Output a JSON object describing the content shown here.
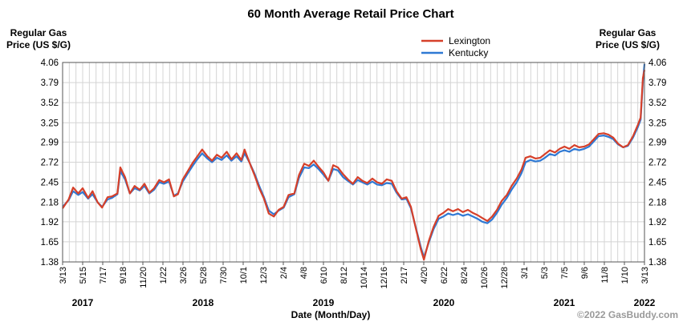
{
  "chart_data": {
    "type": "line",
    "title": "60 Month Average Retail Price Chart",
    "ylabel_left": [
      "Regular Gas",
      "Price (US $/G)"
    ],
    "ylabel_right": [
      "Regular Gas",
      "Price (US $/G)"
    ],
    "xlabel": "Date (Month/Day)",
    "credit": "©2022 GasBuddy.com",
    "yticks": [
      "4.06",
      "3.79",
      "3.52",
      "3.25",
      "2.99",
      "2.72",
      "2.45",
      "2.18",
      "1.92",
      "1.65",
      "1.38"
    ],
    "ylim": [
      1.38,
      4.06
    ],
    "x_tick_labels": [
      "3/13",
      "5/15",
      "7/17",
      "9/18",
      "11/20",
      "1/22",
      "3/26",
      "5/28",
      "7/30",
      "10/1",
      "12/3",
      "2/4",
      "4/8",
      "6/10",
      "8/12",
      "10/14",
      "12/16",
      "2/17",
      "4/20",
      "6/22",
      "8/24",
      "10/26",
      "12/28",
      "3/1",
      "5/3",
      "7/5",
      "9/6",
      "11/8",
      "1/10",
      "3/13"
    ],
    "years": [
      {
        "label": "2017",
        "at": "5/15"
      },
      {
        "label": "2018",
        "at": "5/28"
      },
      {
        "label": "2019",
        "at": "6/10"
      },
      {
        "label": "2020",
        "at": "6/22"
      },
      {
        "label": "2021",
        "at": "7/5"
      },
      {
        "label": "2022",
        "at": "3/13"
      }
    ],
    "x_range": [
      "2017-03-13",
      "2022-03-13"
    ],
    "grid": true,
    "legend_position": "top",
    "series": [
      {
        "name": "Lexington",
        "color": "#d6402a",
        "points": [
          [
            "2017-03-13",
            2.1
          ],
          [
            "2017-04-01",
            2.22
          ],
          [
            "2017-04-15",
            2.38
          ],
          [
            "2017-05-01",
            2.3
          ],
          [
            "2017-05-15",
            2.37
          ],
          [
            "2017-06-01",
            2.24
          ],
          [
            "2017-06-15",
            2.33
          ],
          [
            "2017-07-01",
            2.18
          ],
          [
            "2017-07-15",
            2.11
          ],
          [
            "2017-08-01",
            2.25
          ],
          [
            "2017-08-15",
            2.26
          ],
          [
            "2017-09-01",
            2.3
          ],
          [
            "2017-09-10",
            2.65
          ],
          [
            "2017-09-25",
            2.52
          ],
          [
            "2017-10-10",
            2.3
          ],
          [
            "2017-10-25",
            2.4
          ],
          [
            "2017-11-10",
            2.35
          ],
          [
            "2017-11-25",
            2.43
          ],
          [
            "2017-12-10",
            2.31
          ],
          [
            "2017-12-25",
            2.37
          ],
          [
            "2018-01-10",
            2.48
          ],
          [
            "2018-01-25",
            2.45
          ],
          [
            "2018-02-10",
            2.49
          ],
          [
            "2018-02-25",
            2.26
          ],
          [
            "2018-03-10",
            2.29
          ],
          [
            "2018-03-25",
            2.49
          ],
          [
            "2018-04-10",
            2.6
          ],
          [
            "2018-04-25",
            2.71
          ],
          [
            "2018-05-10",
            2.8
          ],
          [
            "2018-05-25",
            2.89
          ],
          [
            "2018-06-10",
            2.8
          ],
          [
            "2018-06-25",
            2.74
          ],
          [
            "2018-07-10",
            2.82
          ],
          [
            "2018-07-25",
            2.78
          ],
          [
            "2018-08-10",
            2.86
          ],
          [
            "2018-08-25",
            2.76
          ],
          [
            "2018-09-10",
            2.84
          ],
          [
            "2018-09-25",
            2.75
          ],
          [
            "2018-10-05",
            2.89
          ],
          [
            "2018-10-20",
            2.72
          ],
          [
            "2018-11-05",
            2.55
          ],
          [
            "2018-11-20",
            2.37
          ],
          [
            "2018-12-05",
            2.23
          ],
          [
            "2018-12-20",
            2.03
          ],
          [
            "2019-01-05",
            1.99
          ],
          [
            "2019-01-20",
            2.08
          ],
          [
            "2019-02-05",
            2.12
          ],
          [
            "2019-02-20",
            2.28
          ],
          [
            "2019-03-10",
            2.3
          ],
          [
            "2019-03-25",
            2.55
          ],
          [
            "2019-04-10",
            2.7
          ],
          [
            "2019-04-25",
            2.67
          ],
          [
            "2019-05-10",
            2.74
          ],
          [
            "2019-05-25",
            2.66
          ],
          [
            "2019-06-10",
            2.58
          ],
          [
            "2019-06-25",
            2.47
          ],
          [
            "2019-07-10",
            2.68
          ],
          [
            "2019-07-25",
            2.65
          ],
          [
            "2019-08-10",
            2.56
          ],
          [
            "2019-08-25",
            2.49
          ],
          [
            "2019-09-10",
            2.43
          ],
          [
            "2019-09-25",
            2.52
          ],
          [
            "2019-10-10",
            2.47
          ],
          [
            "2019-10-25",
            2.44
          ],
          [
            "2019-11-10",
            2.5
          ],
          [
            "2019-11-25",
            2.45
          ],
          [
            "2019-12-10",
            2.43
          ],
          [
            "2019-12-25",
            2.49
          ],
          [
            "2020-01-10",
            2.47
          ],
          [
            "2020-01-25",
            2.33
          ],
          [
            "2020-02-10",
            2.23
          ],
          [
            "2020-02-25",
            2.25
          ],
          [
            "2020-03-10",
            2.12
          ],
          [
            "2020-03-25",
            1.84
          ],
          [
            "2020-04-10",
            1.55
          ],
          [
            "2020-04-20",
            1.41
          ],
          [
            "2020-05-05",
            1.66
          ],
          [
            "2020-05-20",
            1.85
          ],
          [
            "2020-06-05",
            2.0
          ],
          [
            "2020-06-20",
            2.04
          ],
          [
            "2020-07-05",
            2.09
          ],
          [
            "2020-07-20",
            2.06
          ],
          [
            "2020-08-05",
            2.09
          ],
          [
            "2020-08-20",
            2.05
          ],
          [
            "2020-09-05",
            2.08
          ],
          [
            "2020-09-20",
            2.04
          ],
          [
            "2020-10-05",
            2.01
          ],
          [
            "2020-10-20",
            1.97
          ],
          [
            "2020-11-05",
            1.93
          ],
          [
            "2020-11-20",
            1.99
          ],
          [
            "2020-12-05",
            2.08
          ],
          [
            "2020-12-20",
            2.2
          ],
          [
            "2021-01-05",
            2.28
          ],
          [
            "2021-01-20",
            2.4
          ],
          [
            "2021-02-05",
            2.5
          ],
          [
            "2021-02-20",
            2.62
          ],
          [
            "2021-03-05",
            2.78
          ],
          [
            "2021-03-20",
            2.8
          ],
          [
            "2021-04-05",
            2.77
          ],
          [
            "2021-04-20",
            2.78
          ],
          [
            "2021-05-05",
            2.83
          ],
          [
            "2021-05-20",
            2.88
          ],
          [
            "2021-06-05",
            2.85
          ],
          [
            "2021-06-20",
            2.9
          ],
          [
            "2021-07-05",
            2.93
          ],
          [
            "2021-07-20",
            2.9
          ],
          [
            "2021-08-05",
            2.95
          ],
          [
            "2021-08-20",
            2.92
          ],
          [
            "2021-09-05",
            2.93
          ],
          [
            "2021-09-20",
            2.96
          ],
          [
            "2021-10-05",
            3.03
          ],
          [
            "2021-10-20",
            3.1
          ],
          [
            "2021-11-05",
            3.11
          ],
          [
            "2021-11-20",
            3.09
          ],
          [
            "2021-12-05",
            3.05
          ],
          [
            "2021-12-20",
            2.97
          ],
          [
            "2022-01-05",
            2.92
          ],
          [
            "2022-01-20",
            2.95
          ],
          [
            "2022-02-05",
            3.07
          ],
          [
            "2022-02-20",
            3.22
          ],
          [
            "2022-03-01",
            3.32
          ],
          [
            "2022-03-08",
            3.85
          ],
          [
            "2022-03-13",
            3.96
          ]
        ]
      },
      {
        "name": "Kentucky",
        "color": "#2f79d4",
        "points": [
          [
            "2017-03-13",
            2.12
          ],
          [
            "2017-04-01",
            2.21
          ],
          [
            "2017-04-15",
            2.33
          ],
          [
            "2017-05-01",
            2.28
          ],
          [
            "2017-05-15",
            2.32
          ],
          [
            "2017-06-01",
            2.23
          ],
          [
            "2017-06-15",
            2.29
          ],
          [
            "2017-07-01",
            2.18
          ],
          [
            "2017-07-15",
            2.12
          ],
          [
            "2017-08-01",
            2.22
          ],
          [
            "2017-08-15",
            2.24
          ],
          [
            "2017-09-01",
            2.29
          ],
          [
            "2017-09-10",
            2.6
          ],
          [
            "2017-09-25",
            2.49
          ],
          [
            "2017-10-10",
            2.3
          ],
          [
            "2017-10-25",
            2.37
          ],
          [
            "2017-11-10",
            2.34
          ],
          [
            "2017-11-25",
            2.4
          ],
          [
            "2017-12-10",
            2.3
          ],
          [
            "2017-12-25",
            2.35
          ],
          [
            "2018-01-10",
            2.45
          ],
          [
            "2018-01-25",
            2.43
          ],
          [
            "2018-02-10",
            2.46
          ],
          [
            "2018-02-25",
            2.27
          ],
          [
            "2018-03-10",
            2.3
          ],
          [
            "2018-03-25",
            2.46
          ],
          [
            "2018-04-10",
            2.57
          ],
          [
            "2018-04-25",
            2.67
          ],
          [
            "2018-05-10",
            2.76
          ],
          [
            "2018-05-25",
            2.84
          ],
          [
            "2018-06-10",
            2.77
          ],
          [
            "2018-06-25",
            2.72
          ],
          [
            "2018-07-10",
            2.78
          ],
          [
            "2018-07-25",
            2.75
          ],
          [
            "2018-08-10",
            2.81
          ],
          [
            "2018-08-25",
            2.74
          ],
          [
            "2018-09-10",
            2.8
          ],
          [
            "2018-09-25",
            2.73
          ],
          [
            "2018-10-05",
            2.84
          ],
          [
            "2018-10-20",
            2.72
          ],
          [
            "2018-11-05",
            2.57
          ],
          [
            "2018-11-20",
            2.4
          ],
          [
            "2018-12-05",
            2.25
          ],
          [
            "2018-12-20",
            2.07
          ],
          [
            "2019-01-05",
            2.02
          ],
          [
            "2019-01-20",
            2.07
          ],
          [
            "2019-02-05",
            2.11
          ],
          [
            "2019-02-20",
            2.25
          ],
          [
            "2019-03-10",
            2.29
          ],
          [
            "2019-03-25",
            2.51
          ],
          [
            "2019-04-10",
            2.65
          ],
          [
            "2019-04-25",
            2.64
          ],
          [
            "2019-05-10",
            2.69
          ],
          [
            "2019-05-25",
            2.63
          ],
          [
            "2019-06-10",
            2.55
          ],
          [
            "2019-06-25",
            2.47
          ],
          [
            "2019-07-10",
            2.63
          ],
          [
            "2019-07-25",
            2.61
          ],
          [
            "2019-08-10",
            2.52
          ],
          [
            "2019-08-25",
            2.47
          ],
          [
            "2019-09-10",
            2.42
          ],
          [
            "2019-09-25",
            2.48
          ],
          [
            "2019-10-10",
            2.45
          ],
          [
            "2019-10-25",
            2.42
          ],
          [
            "2019-11-10",
            2.46
          ],
          [
            "2019-11-25",
            2.42
          ],
          [
            "2019-12-10",
            2.41
          ],
          [
            "2019-12-25",
            2.44
          ],
          [
            "2020-01-10",
            2.43
          ],
          [
            "2020-01-25",
            2.31
          ],
          [
            "2020-02-10",
            2.22
          ],
          [
            "2020-02-25",
            2.23
          ],
          [
            "2020-03-10",
            2.1
          ],
          [
            "2020-03-25",
            1.85
          ],
          [
            "2020-04-10",
            1.58
          ],
          [
            "2020-04-20",
            1.44
          ],
          [
            "2020-05-05",
            1.64
          ],
          [
            "2020-05-20",
            1.82
          ],
          [
            "2020-06-05",
            1.96
          ],
          [
            "2020-06-20",
            1.99
          ],
          [
            "2020-07-05",
            2.03
          ],
          [
            "2020-07-20",
            2.01
          ],
          [
            "2020-08-05",
            2.03
          ],
          [
            "2020-08-20",
            2.0
          ],
          [
            "2020-09-05",
            2.02
          ],
          [
            "2020-09-20",
            1.99
          ],
          [
            "2020-10-05",
            1.96
          ],
          [
            "2020-10-20",
            1.92
          ],
          [
            "2020-11-05",
            1.9
          ],
          [
            "2020-11-20",
            1.95
          ],
          [
            "2020-12-05",
            2.04
          ],
          [
            "2020-12-20",
            2.15
          ],
          [
            "2021-01-05",
            2.24
          ],
          [
            "2021-01-20",
            2.35
          ],
          [
            "2021-02-05",
            2.45
          ],
          [
            "2021-02-20",
            2.57
          ],
          [
            "2021-03-05",
            2.72
          ],
          [
            "2021-03-20",
            2.75
          ],
          [
            "2021-04-05",
            2.73
          ],
          [
            "2021-04-20",
            2.74
          ],
          [
            "2021-05-05",
            2.78
          ],
          [
            "2021-05-20",
            2.83
          ],
          [
            "2021-06-05",
            2.81
          ],
          [
            "2021-06-20",
            2.86
          ],
          [
            "2021-07-05",
            2.88
          ],
          [
            "2021-07-20",
            2.86
          ],
          [
            "2021-08-05",
            2.9
          ],
          [
            "2021-08-20",
            2.88
          ],
          [
            "2021-09-05",
            2.9
          ],
          [
            "2021-09-20",
            2.93
          ],
          [
            "2021-10-05",
            3.0
          ],
          [
            "2021-10-20",
            3.07
          ],
          [
            "2021-11-05",
            3.08
          ],
          [
            "2021-11-20",
            3.06
          ],
          [
            "2021-12-05",
            3.03
          ],
          [
            "2021-12-20",
            2.96
          ],
          [
            "2022-01-05",
            2.92
          ],
          [
            "2022-01-20",
            2.94
          ],
          [
            "2022-02-05",
            3.05
          ],
          [
            "2022-02-20",
            3.19
          ],
          [
            "2022-03-01",
            3.29
          ],
          [
            "2022-03-08",
            3.8
          ],
          [
            "2022-03-13",
            4.04
          ]
        ]
      }
    ]
  }
}
